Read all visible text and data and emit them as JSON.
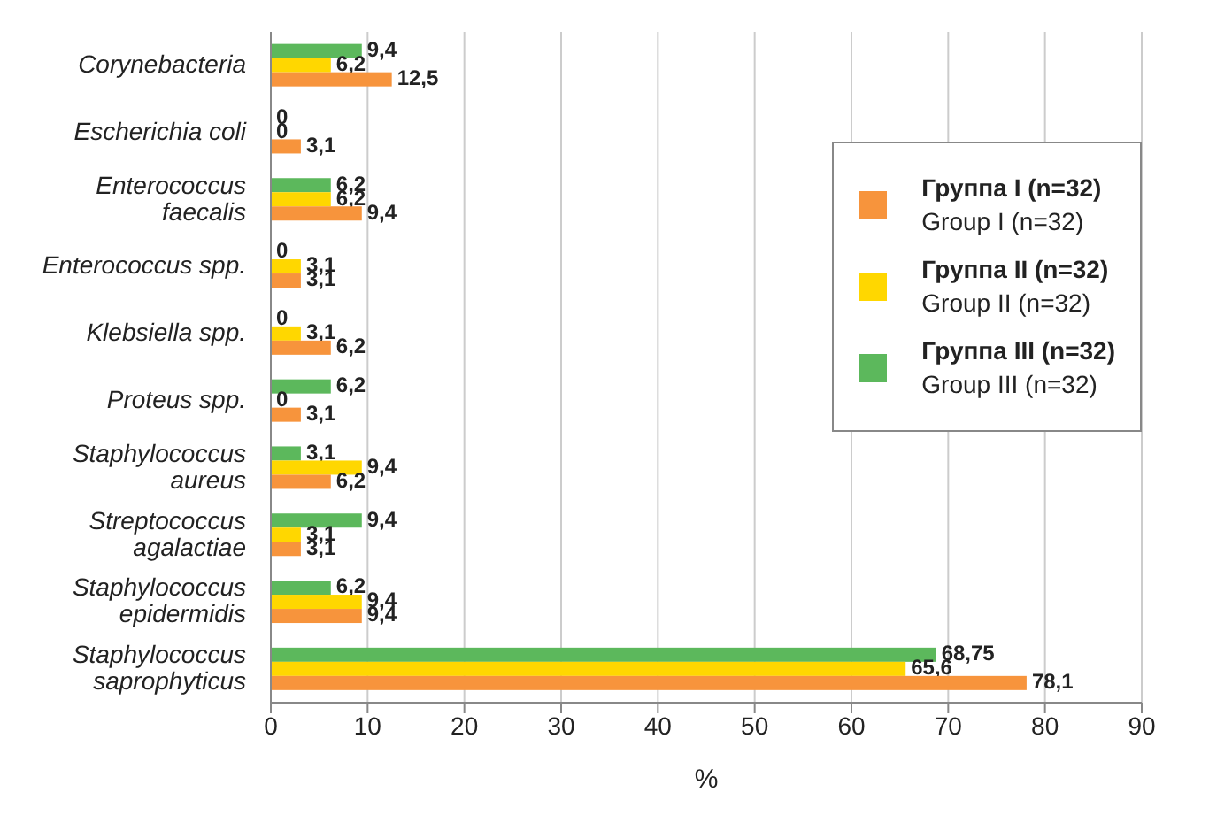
{
  "chart_data": {
    "type": "bar",
    "orientation": "horizontal",
    "xlabel": "%",
    "categories": [
      "Corynebacteria",
      "Escherichia coli",
      "Enterococcus\nfaecalis",
      "Enterococcus spp.",
      "Klebsiella spp.",
      "Proteus spp.",
      "Staphylococcus\naureus",
      "Streptococcus\nagalactiae",
      "Staphylococcus\nepidermidis",
      "Staphylococcus\nsaprophyticus"
    ],
    "series": [
      {
        "name": "Группа I (n=32)\nGroup I (n=32)",
        "color": "#f7943c",
        "values": [
          12.5,
          3.1,
          9.4,
          3.1,
          6.2,
          3.1,
          6.2,
          3.1,
          9.4,
          78.1
        ],
        "value_labels": [
          "12,5",
          "3,1",
          "9,4",
          "3,1",
          "6,2",
          "3,1",
          "6,2",
          "3,1",
          "9,4",
          "78,1"
        ]
      },
      {
        "name": "Группа II (n=32)\nGroup II (n=32)",
        "color": "#ffd700",
        "values": [
          6.2,
          0,
          6.2,
          3.1,
          3.1,
          0,
          9.4,
          3.1,
          9.4,
          65.6
        ],
        "value_labels": [
          "6,2",
          "0",
          "6,2",
          "3,1",
          "3,1",
          "0",
          "9,4",
          "3,1",
          "9,4",
          "65,6"
        ]
      },
      {
        "name": "Группа III (n=32)\nGroup III (n=32)",
        "color": "#5cb85c",
        "values": [
          9.4,
          0,
          6.2,
          0,
          0,
          6.2,
          3.1,
          9.4,
          6.2,
          68.75
        ],
        "value_labels": [
          "9,4",
          "0",
          "6,2",
          "0",
          "0",
          "6,2",
          "3,1",
          "9,4",
          "6,2",
          "68,75"
        ]
      }
    ],
    "xlim": [
      0,
      90
    ],
    "xticks": [
      0,
      10,
      20,
      30,
      40,
      50,
      60,
      70,
      80,
      90
    ],
    "grid": "x",
    "legend": "top right"
  }
}
